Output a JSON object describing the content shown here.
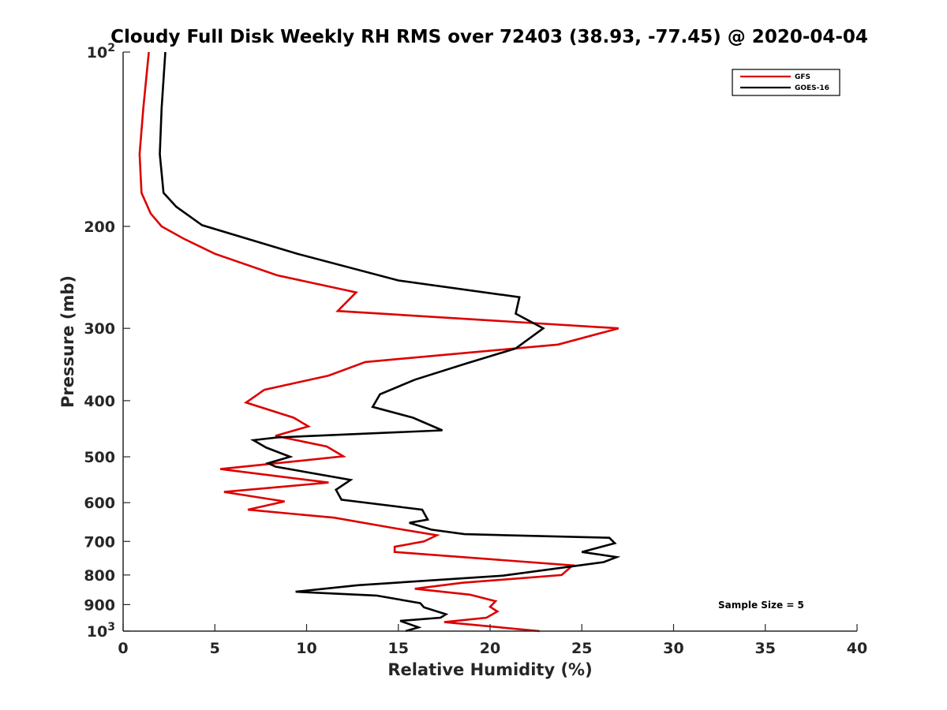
{
  "chart_data": {
    "type": "line",
    "title": "Cloudy Full Disk Weekly RH RMS over 72403 (38.93, -77.45) @ 2020-04-04",
    "xlabel": "Relative Humidity (%)",
    "ylabel": "Pressure (mb)",
    "xlim": [
      0,
      40
    ],
    "ylim": [
      100,
      1000
    ],
    "y_scale": "log",
    "y_reversed": true,
    "grid": false,
    "legend_position": "top-right",
    "annotation": "Sample Size = 5",
    "x_ticks": [
      "0",
      "5",
      "10",
      "15",
      "20",
      "25",
      "30",
      "35",
      "40"
    ],
    "x_tick_values": [
      0,
      5,
      10,
      15,
      20,
      25,
      30,
      35,
      40
    ],
    "y_ticks": [
      {
        "value": 100,
        "label": "10",
        "sup": "2"
      },
      {
        "value": 200,
        "label": "200",
        "sup": ""
      },
      {
        "value": 300,
        "label": "300",
        "sup": ""
      },
      {
        "value": 400,
        "label": "400",
        "sup": ""
      },
      {
        "value": 500,
        "label": "500",
        "sup": ""
      },
      {
        "value": 600,
        "label": "600",
        "sup": ""
      },
      {
        "value": 700,
        "label": "700",
        "sup": ""
      },
      {
        "value": 800,
        "label": "800",
        "sup": ""
      },
      {
        "value": 900,
        "label": "900",
        "sup": ""
      },
      {
        "value": 1000,
        "label": "10",
        "sup": "3"
      }
    ],
    "series": [
      {
        "name": "GFS",
        "color": "#dd0000",
        "points": [
          [
            1.4,
            100
          ],
          [
            1.1,
            125
          ],
          [
            0.9,
            150
          ],
          [
            1.0,
            175
          ],
          [
            1.5,
            190
          ],
          [
            2.1,
            200
          ],
          [
            3.3,
            210
          ],
          [
            5.0,
            223
          ],
          [
            8.4,
            243
          ],
          [
            12.7,
            260
          ],
          [
            11.7,
            280
          ],
          [
            27.0,
            300
          ],
          [
            23.7,
            320
          ],
          [
            13.2,
            343
          ],
          [
            11.2,
            362
          ],
          [
            7.7,
            383
          ],
          [
            6.7,
            403
          ],
          [
            9.3,
            428
          ],
          [
            10.1,
            443
          ],
          [
            8.3,
            460
          ],
          [
            11.1,
            480
          ],
          [
            12.0,
            499
          ],
          [
            5.3,
            525
          ],
          [
            11.2,
            554
          ],
          [
            5.5,
            575
          ],
          [
            8.8,
            597
          ],
          [
            6.8,
            617
          ],
          [
            11.5,
            637
          ],
          [
            14.9,
            665
          ],
          [
            17.1,
            683
          ],
          [
            16.4,
            700
          ],
          [
            14.8,
            715
          ],
          [
            14.8,
            730
          ],
          [
            24.5,
            770
          ],
          [
            23.9,
            800
          ],
          [
            18.5,
            825
          ],
          [
            15.9,
            845
          ],
          [
            18.9,
            865
          ],
          [
            20.3,
            888
          ],
          [
            20.0,
            908
          ],
          [
            20.4,
            925
          ],
          [
            19.8,
            948
          ],
          [
            17.5,
            965
          ],
          [
            22.7,
            1000
          ]
        ]
      },
      {
        "name": "GOES-16",
        "color": "#000000",
        "points": [
          [
            2.3,
            100
          ],
          [
            2.1,
            125
          ],
          [
            2.0,
            150
          ],
          [
            2.2,
            175
          ],
          [
            2.9,
            185
          ],
          [
            4.3,
            199
          ],
          [
            9.5,
            223
          ],
          [
            15.0,
            248
          ],
          [
            21.6,
            265
          ],
          [
            21.4,
            283
          ],
          [
            22.9,
            300
          ],
          [
            21.4,
            325
          ],
          [
            18.7,
            345
          ],
          [
            15.9,
            368
          ],
          [
            14.0,
            390
          ],
          [
            13.6,
            410
          ],
          [
            15.8,
            428
          ],
          [
            17.4,
            450
          ],
          [
            8.4,
            463
          ],
          [
            7.1,
            468
          ],
          [
            7.8,
            482
          ],
          [
            9.1,
            500
          ],
          [
            7.9,
            513
          ],
          [
            8.3,
            520
          ],
          [
            12.4,
            548
          ],
          [
            11.6,
            570
          ],
          [
            11.9,
            593
          ],
          [
            16.3,
            617
          ],
          [
            16.6,
            642
          ],
          [
            15.6,
            650
          ],
          [
            16.8,
            668
          ],
          [
            18.6,
            680
          ],
          [
            26.5,
            690
          ],
          [
            26.8,
            705
          ],
          [
            25.0,
            730
          ],
          [
            26.9,
            745
          ],
          [
            26.2,
            760
          ],
          [
            20.7,
            802
          ],
          [
            12.8,
            833
          ],
          [
            9.4,
            855
          ],
          [
            13.8,
            868
          ],
          [
            16.2,
            895
          ],
          [
            16.4,
            910
          ],
          [
            17.6,
            935
          ],
          [
            17.3,
            948
          ],
          [
            15.1,
            960
          ],
          [
            16.1,
            985
          ],
          [
            15.4,
            1000
          ]
        ]
      }
    ]
  }
}
